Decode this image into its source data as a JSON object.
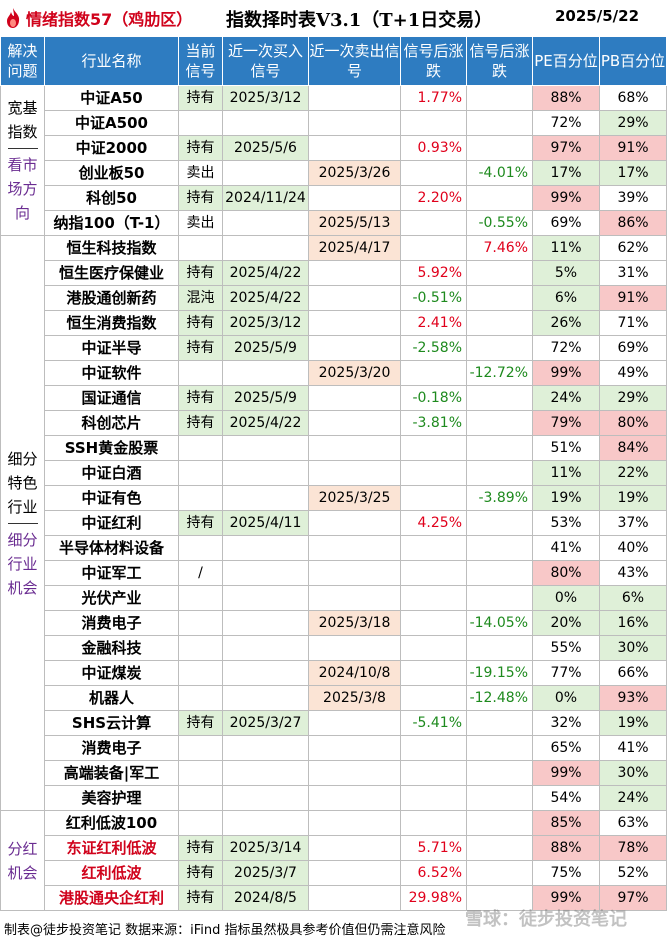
{
  "header": {
    "brand": "情绪指数57（鸡肋区）",
    "title": "指数择时表V3.1（T+1日交易）",
    "date": "2025/5/22"
  },
  "columns": [
    "解决问题",
    "行业名称",
    "当前信号",
    "近一次买入信号",
    "近一次卖出信号",
    "信号后涨跌",
    "信号后涨跌",
    "PE百分位",
    "PB百分位"
  ],
  "groups": {
    "g1a": "宽基指数",
    "g1b": "看市场方向",
    "g2a": "细分特色行业",
    "g2b": "细分行业机会",
    "g3": "分红机会"
  },
  "rows": [
    {
      "name": "中证A50",
      "signal": "持有",
      "buy": "2025/3/12",
      "sell": "",
      "gain": "1.77%",
      "loss": "",
      "pe": "88%",
      "pb": "68%"
    },
    {
      "name": "中证A500",
      "signal": "",
      "buy": "",
      "sell": "",
      "gain": "",
      "loss": "",
      "pe": "72%",
      "pb": "29%"
    },
    {
      "name": "中证2000",
      "signal": "持有",
      "buy": "2025/5/6",
      "sell": "",
      "gain": "0.93%",
      "loss": "",
      "pe": "97%",
      "pb": "91%"
    },
    {
      "name": "创业板50",
      "signal": "卖出",
      "buy": "",
      "sell": "2025/3/26",
      "gain": "",
      "loss": "-4.01%",
      "pe": "17%",
      "pb": "17%"
    },
    {
      "name": "科创50",
      "signal": "持有",
      "buy": "2024/11/24",
      "sell": "",
      "gain": "2.20%",
      "loss": "",
      "pe": "99%",
      "pb": "39%"
    },
    {
      "name": "纳指100（T-1）",
      "signal": "卖出",
      "buy": "",
      "sell": "2025/5/13",
      "gain": "",
      "loss": "-0.55%",
      "pe": "69%",
      "pb": "86%"
    },
    {
      "name": "恒生科技指数",
      "signal": "",
      "buy": "",
      "sell": "2025/4/17",
      "gain": "",
      "loss": "7.46%",
      "pe": "11%",
      "pb": "62%"
    },
    {
      "name": "恒生医疗保健业",
      "signal": "持有",
      "buy": "2025/4/22",
      "sell": "",
      "gain": "5.92%",
      "loss": "",
      "pe": "5%",
      "pb": "31%"
    },
    {
      "name": "港股通创新药",
      "signal": "混沌",
      "buy": "2025/4/22",
      "sell": "",
      "gain": "-0.51%",
      "loss": "",
      "pe": "6%",
      "pb": "91%"
    },
    {
      "name": "恒生消费指数",
      "signal": "持有",
      "buy": "2025/3/12",
      "sell": "",
      "gain": "2.41%",
      "loss": "",
      "pe": "26%",
      "pb": "71%"
    },
    {
      "name": "中证半导",
      "signal": "持有",
      "buy": "2025/5/9",
      "sell": "",
      "gain": "-2.58%",
      "loss": "",
      "pe": "72%",
      "pb": "69%"
    },
    {
      "name": "中证软件",
      "signal": "",
      "buy": "",
      "sell": "2025/3/20",
      "gain": "",
      "loss": "-12.72%",
      "pe": "99%",
      "pb": "49%"
    },
    {
      "name": "国证通信",
      "signal": "持有",
      "buy": "2025/5/9",
      "sell": "",
      "gain": "-0.18%",
      "loss": "",
      "pe": "24%",
      "pb": "29%"
    },
    {
      "name": "科创芯片",
      "signal": "持有",
      "buy": "2025/4/22",
      "sell": "",
      "gain": "-3.81%",
      "loss": "",
      "pe": "79%",
      "pb": "80%"
    },
    {
      "name": "SSH黄金股票",
      "signal": "",
      "buy": "",
      "sell": "",
      "gain": "",
      "loss": "",
      "pe": "51%",
      "pb": "84%"
    },
    {
      "name": "中证白酒",
      "signal": "",
      "buy": "",
      "sell": "",
      "gain": "",
      "loss": "",
      "pe": "11%",
      "pb": "22%"
    },
    {
      "name": "中证有色",
      "signal": "",
      "buy": "",
      "sell": "2025/3/25",
      "gain": "",
      "loss": "-3.89%",
      "pe": "19%",
      "pb": "19%"
    },
    {
      "name": "中证红利",
      "signal": "持有",
      "buy": "2025/4/11",
      "sell": "",
      "gain": "4.25%",
      "loss": "",
      "pe": "53%",
      "pb": "37%"
    },
    {
      "name": "半导体材料设备",
      "signal": "",
      "buy": "",
      "sell": "",
      "gain": "",
      "loss": "",
      "pe": "41%",
      "pb": "40%"
    },
    {
      "name": "中证军工",
      "signal": "/",
      "buy": "",
      "sell": "",
      "gain": "",
      "loss": "",
      "pe": "80%",
      "pb": "43%"
    },
    {
      "name": "光伏产业",
      "signal": "",
      "buy": "",
      "sell": "",
      "gain": "",
      "loss": "",
      "pe": "0%",
      "pb": "6%"
    },
    {
      "name": "消费电子",
      "signal": "",
      "buy": "",
      "sell": "2025/3/18",
      "gain": "",
      "loss": "-14.05%",
      "pe": "20%",
      "pb": "16%"
    },
    {
      "name": "金融科技",
      "signal": "",
      "buy": "",
      "sell": "",
      "gain": "",
      "loss": "",
      "pe": "55%",
      "pb": "30%"
    },
    {
      "name": "中证煤炭",
      "signal": "",
      "buy": "",
      "sell": "2024/10/8",
      "gain": "",
      "loss": "-19.15%",
      "pe": "77%",
      "pb": "66%"
    },
    {
      "name": "机器人",
      "signal": "",
      "buy": "",
      "sell": "2025/3/8",
      "gain": "",
      "loss": "-12.48%",
      "pe": "0%",
      "pb": "93%"
    },
    {
      "name": "SHS云计算",
      "signal": "持有",
      "buy": "2025/3/27",
      "sell": "",
      "gain": "-5.41%",
      "loss": "",
      "pe": "32%",
      "pb": "19%"
    },
    {
      "name": "消费电子",
      "signal": "",
      "buy": "",
      "sell": "",
      "gain": "",
      "loss": "",
      "pe": "65%",
      "pb": "41%"
    },
    {
      "name": "高端装备|军工",
      "signal": "",
      "buy": "",
      "sell": "",
      "gain": "",
      "loss": "",
      "pe": "99%",
      "pb": "30%"
    },
    {
      "name": "美容护理",
      "signal": "",
      "buy": "",
      "sell": "",
      "gain": "",
      "loss": "",
      "pe": "54%",
      "pb": "24%"
    },
    {
      "name": "红利低波100",
      "signal": "",
      "buy": "",
      "sell": "",
      "gain": "",
      "loss": "",
      "pe": "85%",
      "pb": "63%"
    },
    {
      "name": "东证红利低波",
      "signal": "持有",
      "buy": "2025/3/14",
      "sell": "",
      "gain": "5.71%",
      "loss": "",
      "pe": "88%",
      "pb": "78%"
    },
    {
      "name": "红利低波",
      "signal": "持有",
      "buy": "2025/3/7",
      "sell": "",
      "gain": "6.52%",
      "loss": "",
      "pe": "75%",
      "pb": "52%"
    },
    {
      "name": "港股通央企红利",
      "signal": "持有",
      "buy": "2024/8/5",
      "sell": "",
      "gain": "29.98%",
      "loss": "",
      "pe": "99%",
      "pb": "97%"
    }
  ],
  "footer": "制表@徒步投资笔记 数据来源：iFind 指标虽然极具参考价值但仍需注意风险",
  "watermark": "雪球：徒步投资笔记",
  "colors": {
    "header_bg": "#2e7cc1",
    "hold_bg": "#dff0d8",
    "sell_bg": "#fbe4d5",
    "high_pct": "#f8c8c8",
    "low_pct": "#dff0d8",
    "gain": "#e0001b",
    "loss": "#1e8a1e",
    "brand": "#d0021b"
  }
}
